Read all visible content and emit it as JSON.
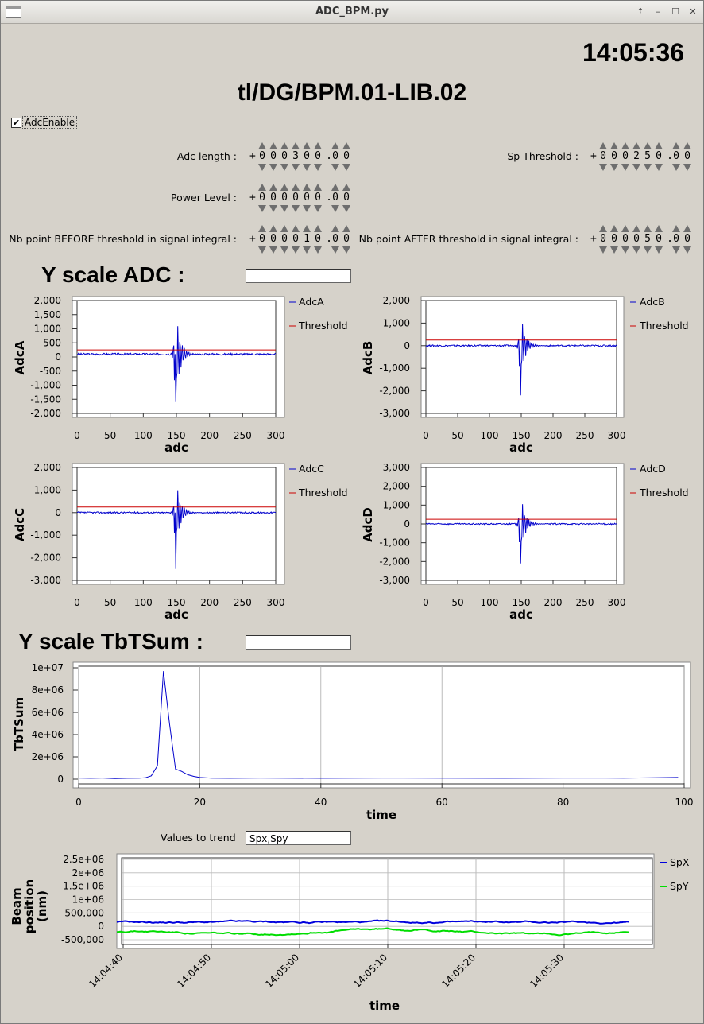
{
  "window": {
    "title": "ADC_BPM.py"
  },
  "clock": "14:05:36",
  "device_name": "tl/DG/BPM.01-LIB.02",
  "adc_enable": {
    "label": "AdcEnable",
    "checked": true,
    "mark": "✔"
  },
  "params": {
    "adc_length": {
      "label": "Adc length :",
      "sign": "+",
      "digits": [
        "0",
        "0",
        "0",
        "3",
        "0",
        "0",
        ".",
        "0",
        "0"
      ]
    },
    "sp_threshold": {
      "label": "Sp Threshold :",
      "sign": "+",
      "digits": [
        "0",
        "0",
        "0",
        "2",
        "5",
        "0",
        ".",
        "0",
        "0"
      ]
    },
    "power_level": {
      "label": "Power Level :",
      "sign": "+",
      "digits": [
        "0",
        "0",
        "0",
        "0",
        "0",
        "0",
        ".",
        "0",
        "0"
      ]
    },
    "nb_before": {
      "label": "Nb point BEFORE threshold in signal integral :",
      "sign": "+",
      "digits": [
        "0",
        "0",
        "0",
        "0",
        "1",
        "0",
        ".",
        "0",
        "0"
      ]
    },
    "nb_after": {
      "label": "Nb point AFTER threshold in signal integral :",
      "sign": "+",
      "digits": [
        "0",
        "0",
        "0",
        "0",
        "5",
        "0",
        ".",
        "0",
        "0"
      ]
    }
  },
  "y_scale_adc": {
    "label": "Y scale ADC :",
    "value": ""
  },
  "y_scale_tbt": {
    "label": "Y scale TbTSum :",
    "value": ""
  },
  "trend": {
    "label": "Values to trend",
    "value": "Spx,Spy"
  },
  "colors": {
    "adc": "#0000cc",
    "threshold": "#cc0000",
    "spx": "#0000dd",
    "spy": "#00dd00",
    "tbt": "#0000cc"
  },
  "chart_data": [
    {
      "type": "line",
      "xlabel": "adc",
      "ylabel": "AdcA",
      "xlim": [
        0,
        300
      ],
      "ylim": [
        -2000,
        2000
      ],
      "x_ticks": [
        "0",
        "50",
        "100",
        "150",
        "200",
        "250",
        "300"
      ],
      "y_ticks": [
        "2,000",
        "1,500",
        "1,000",
        "500",
        "0",
        "-500",
        "-1,000",
        "-1,500",
        "-2,000"
      ],
      "y_tick_values": [
        2000,
        1500,
        1000,
        500,
        0,
        -500,
        -1000,
        -1500,
        -2000
      ],
      "series": [
        {
          "name": "AdcA",
          "color": "#0000cc",
          "baseline": 100,
          "burst_center": 148,
          "burst_amp": 1900,
          "min": -1600
        },
        {
          "name": "Threshold",
          "color": "#cc0000",
          "value": 250
        }
      ]
    },
    {
      "type": "line",
      "xlabel": "adc",
      "ylabel": "AdcB",
      "xlim": [
        0,
        300
      ],
      "ylim": [
        -3000,
        2000
      ],
      "x_ticks": [
        "0",
        "50",
        "100",
        "150",
        "200",
        "250",
        "300"
      ],
      "y_ticks": [
        "2,000",
        "1,000",
        "0",
        "-1,000",
        "-2,000",
        "-3,000"
      ],
      "y_tick_values": [
        2000,
        1000,
        0,
        -1000,
        -2000,
        -3000
      ],
      "series": [
        {
          "name": "AdcB",
          "color": "#0000cc",
          "baseline": 0,
          "burst_center": 148,
          "burst_amp": 1850,
          "min": -2200
        },
        {
          "name": "Threshold",
          "color": "#cc0000",
          "value": 250
        }
      ]
    },
    {
      "type": "line",
      "xlabel": "adc",
      "ylabel": "AdcC",
      "xlim": [
        0,
        300
      ],
      "ylim": [
        -3000,
        2000
      ],
      "x_ticks": [
        "0",
        "50",
        "100",
        "150",
        "200",
        "250",
        "300"
      ],
      "y_ticks": [
        "2,000",
        "1,000",
        "0",
        "-1,000",
        "-2,000",
        "-3,000"
      ],
      "y_tick_values": [
        2000,
        1000,
        0,
        -1000,
        -2000,
        -3000
      ],
      "series": [
        {
          "name": "AdcC",
          "color": "#0000cc",
          "baseline": 0,
          "burst_center": 148,
          "burst_amp": 1900,
          "min": -2500
        },
        {
          "name": "Threshold",
          "color": "#cc0000",
          "value": 250
        }
      ]
    },
    {
      "type": "line",
      "xlabel": "adc",
      "ylabel": "AdcD",
      "xlim": [
        0,
        300
      ],
      "ylim": [
        -3000,
        3000
      ],
      "x_ticks": [
        "0",
        "50",
        "100",
        "150",
        "200",
        "250",
        "300"
      ],
      "y_ticks": [
        "3,000",
        "2,000",
        "1,000",
        "0",
        "-1,000",
        "-2,000",
        "-3,000"
      ],
      "y_tick_values": [
        3000,
        2000,
        1000,
        0,
        -1000,
        -2000,
        -3000
      ],
      "series": [
        {
          "name": "AdcD",
          "color": "#0000cc",
          "baseline": 0,
          "burst_center": 148,
          "burst_amp": 2000,
          "min": -2100
        },
        {
          "name": "Threshold",
          "color": "#cc0000",
          "value": 250
        }
      ]
    },
    {
      "type": "line",
      "xlabel": "time",
      "ylabel": "TbTSum",
      "xlim": [
        0,
        100
      ],
      "ylim": [
        0,
        10000000
      ],
      "grid": true,
      "x_ticks": [
        "0",
        "20",
        "40",
        "60",
        "80",
        "100"
      ],
      "x_tick_values": [
        0,
        20,
        40,
        60,
        80,
        100
      ],
      "y_ticks": [
        "1e+07",
        "8e+06",
        "6e+06",
        "4e+06",
        "2e+06",
        "0"
      ],
      "y_tick_values": [
        10000000,
        8000000,
        6000000,
        4000000,
        2000000,
        0
      ],
      "series": [
        {
          "name": "TbTSum",
          "color": "#0000cc",
          "x": [
            0,
            2,
            4,
            6,
            8,
            10,
            11,
            12,
            13,
            14,
            15,
            16,
            17,
            18,
            19,
            20,
            22,
            25,
            30,
            40,
            50,
            60,
            70,
            80,
            90,
            99
          ],
          "values": [
            100000,
            80000,
            100000,
            60000,
            80000,
            90000,
            120000,
            300000,
            1200000,
            9700000,
            5000000,
            900000,
            700000,
            400000,
            250000,
            150000,
            90000,
            80000,
            100000,
            80000,
            100000,
            90000,
            80000,
            100000,
            90000,
            150000
          ]
        }
      ]
    },
    {
      "type": "line",
      "xlabel": "time",
      "ylabel": "Beam position (nm)",
      "ylim": [
        -500000,
        2500000
      ],
      "grid": true,
      "x_ticks": [
        "14:04:40",
        "14:04:50",
        "14:05:00",
        "14:05:10",
        "14:05:20",
        "14:05:30"
      ],
      "y_ticks": [
        "2.5e+06",
        "2e+06",
        "1.5e+06",
        "1e+06",
        "500,000",
        "0",
        "-500,000"
      ],
      "y_tick_values": [
        2500000,
        2000000,
        1500000,
        1000000,
        500000,
        0,
        -500000
      ],
      "series": [
        {
          "name": "SpX",
          "color": "#0000dd",
          "level": 150000
        },
        {
          "name": "SpY",
          "color": "#00dd00",
          "level": -200000
        }
      ]
    }
  ]
}
